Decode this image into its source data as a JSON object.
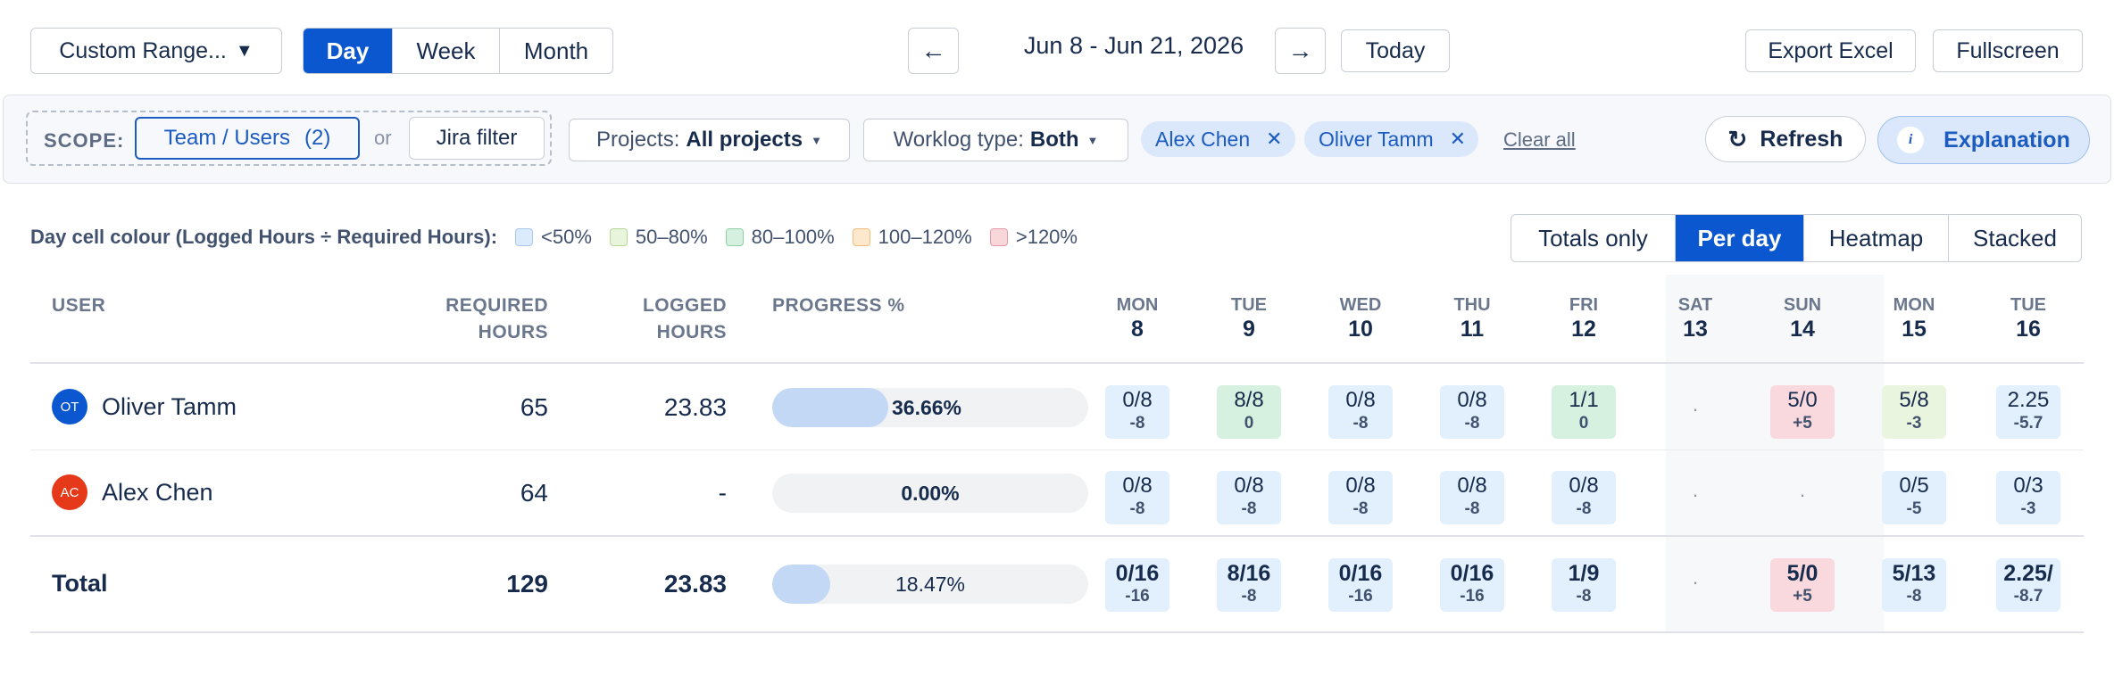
{
  "toolbar": {
    "range_label": "Custom Range...",
    "granularity": [
      "Day",
      "Week",
      "Month"
    ],
    "date_range": "Jun 8 - Jun 21, 2026",
    "today_label": "Today",
    "export_label": "Export Excel",
    "fullscreen_label": "Fullscreen"
  },
  "filters": {
    "scope_label": "SCOPE:",
    "team_users": "Team / Users",
    "team_users_count": "(2)",
    "or_label": "or",
    "jira_filter": "Jira filter",
    "projects_prefix": "Projects:",
    "projects_value": "All projects",
    "worklog_prefix": "Worklog type:",
    "worklog_value": "Both",
    "chips": [
      "Alex Chen",
      "Oliver Tamm"
    ],
    "clear_all": "Clear all",
    "refresh_label": "Refresh",
    "explanation_label": "Explanation"
  },
  "legend": {
    "label": "Day cell colour (Logged Hours ÷ Required Hours):",
    "items": [
      {
        "text": "<50%",
        "color": "#dcebfb",
        "border": "#a9c8ef"
      },
      {
        "text": "50–80%",
        "color": "#e8f4dc",
        "border": "#b8d89a"
      },
      {
        "text": "80–100%",
        "color": "#d5f0df",
        "border": "#8fd0a8"
      },
      {
        "text": "100–120%",
        "color": "#fde8cc",
        "border": "#f0bd7a"
      },
      {
        "text": ">120%",
        "color": "#f9d6da",
        "border": "#e79aa3"
      }
    ]
  },
  "view_modes": [
    "Totals only",
    "Per day",
    "Heatmap",
    "Stacked"
  ],
  "table": {
    "headers": {
      "user": "USER",
      "required_1": "REQUIRED",
      "required_2": "HOURS",
      "logged_1": "LOGGED",
      "logged_2": "HOURS",
      "progress": "PROGRESS %"
    },
    "days": [
      {
        "dow": "MON",
        "date": "8"
      },
      {
        "dow": "TUE",
        "date": "9"
      },
      {
        "dow": "WED",
        "date": "10"
      },
      {
        "dow": "THU",
        "date": "11"
      },
      {
        "dow": "FRI",
        "date": "12"
      },
      {
        "dow": "SAT",
        "date": "13"
      },
      {
        "dow": "SUN",
        "date": "14"
      },
      {
        "dow": "MON",
        "date": "15"
      },
      {
        "dow": "TUE",
        "date": "16"
      }
    ],
    "rows": [
      {
        "initials": "OT",
        "avatar_color": "#0b57d0",
        "name": "Oliver Tamm",
        "required": "65",
        "logged": "23.83",
        "progress": 36.66,
        "progress_label": "36.66%",
        "cells": [
          {
            "top": "0/8",
            "bottom": "-8",
            "color": "#e1f0fc"
          },
          {
            "top": "8/8",
            "bottom": "0",
            "color": "#d6f1e0"
          },
          {
            "top": "0/8",
            "bottom": "-8",
            "color": "#e1f0fc"
          },
          {
            "top": "0/8",
            "bottom": "-8",
            "color": "#e1f0fc"
          },
          {
            "top": "1/1",
            "bottom": "0",
            "color": "#d6f1e0"
          },
          {
            "dot": "·"
          },
          {
            "top": "5/0",
            "bottom": "+5",
            "color": "#f9d9dd"
          },
          {
            "top": "5/8",
            "bottom": "-3",
            "color": "#eaf5df"
          },
          {
            "top": "2.25",
            "bottom": "-5.7",
            "color": "#e1f0fc"
          }
        ]
      },
      {
        "initials": "AC",
        "avatar_color": "#e5391a",
        "name": "Alex Chen",
        "required": "64",
        "logged": "-",
        "progress": 0,
        "progress_label": "0.00%",
        "cells": [
          {
            "top": "0/8",
            "bottom": "-8",
            "color": "#e1f0fc"
          },
          {
            "top": "0/8",
            "bottom": "-8",
            "color": "#e1f0fc"
          },
          {
            "top": "0/8",
            "bottom": "-8",
            "color": "#e1f0fc"
          },
          {
            "top": "0/8",
            "bottom": "-8",
            "color": "#e1f0fc"
          },
          {
            "top": "0/8",
            "bottom": "-8",
            "color": "#e1f0fc"
          },
          {
            "dot": "·"
          },
          {
            "dot": "·"
          },
          {
            "top": "0/5",
            "bottom": "-5",
            "color": "#e1f0fc"
          },
          {
            "top": "0/3",
            "bottom": "-3",
            "color": "#e1f0fc"
          }
        ]
      }
    ],
    "total": {
      "label": "Total",
      "required": "129",
      "logged": "23.83",
      "progress": 18.47,
      "progress_label": "18.47%",
      "cells": [
        {
          "top": "0/16",
          "bottom": "-16",
          "color": "#e1f0fc"
        },
        {
          "top": "8/16",
          "bottom": "-8",
          "color": "#e1f0fc"
        },
        {
          "top": "0/16",
          "bottom": "-16",
          "color": "#e1f0fc"
        },
        {
          "top": "0/16",
          "bottom": "-16",
          "color": "#e1f0fc"
        },
        {
          "top": "1/9",
          "bottom": "-8",
          "color": "#e1f0fc"
        },
        {
          "dot": "·"
        },
        {
          "top": "5/0",
          "bottom": "+5",
          "color": "#f9d9dd"
        },
        {
          "top": "5/13",
          "bottom": "-8",
          "color": "#e1f0fc"
        },
        {
          "top": "2.25/",
          "bottom": "-8.7",
          "color": "#e1f0fc"
        }
      ]
    }
  }
}
